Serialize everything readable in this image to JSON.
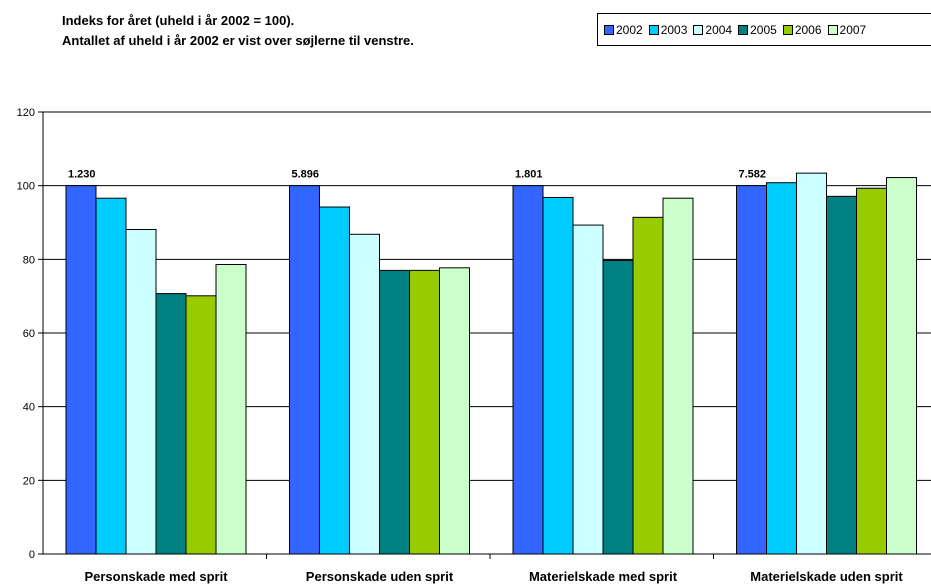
{
  "subtitle": {
    "line1": "Indeks for året (uheld i år 2002 = 100).",
    "line2": "Antallet af uheld i år 2002 er vist over søjlerne til venstre."
  },
  "chart_data": {
    "type": "bar",
    "ylim": [
      0,
      120
    ],
    "yticks": [
      0,
      20,
      40,
      60,
      80,
      100,
      120
    ],
    "grid": true,
    "legend_position": "top-right",
    "categories": [
      "Personskade med sprit",
      "Personskade uden sprit",
      "Materielskade med sprit",
      "Materielskade uden sprit"
    ],
    "group_labels": [
      "1.230",
      "5.896",
      "1.801",
      "7.582"
    ],
    "series": [
      {
        "name": "2002",
        "color": "#3366ff",
        "values": [
          100,
          100,
          100,
          100
        ]
      },
      {
        "name": "2003",
        "color": "#00ccff",
        "values": [
          96.6,
          94.2,
          96.8,
          100.8
        ]
      },
      {
        "name": "2004",
        "color": "#ccffff",
        "values": [
          88.1,
          86.8,
          89.3,
          103.4
        ]
      },
      {
        "name": "2005",
        "color": "#008080",
        "values": [
          70.7,
          77.0,
          79.7,
          97.1
        ]
      },
      {
        "name": "2006",
        "color": "#99cc00",
        "values": [
          70.1,
          77.0,
          91.4,
          99.3
        ]
      },
      {
        "name": "2007",
        "color": "#ccffcc",
        "values": [
          78.6,
          77.7,
          96.6,
          102.2
        ]
      }
    ]
  }
}
